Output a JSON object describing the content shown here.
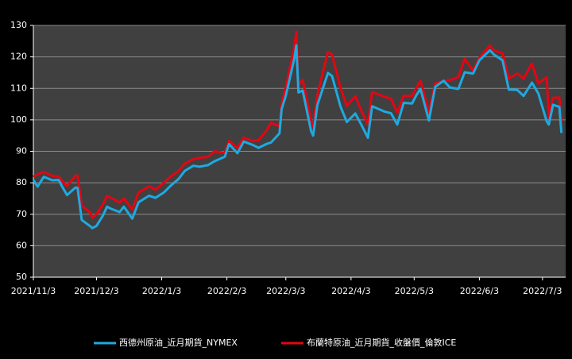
{
  "chart_data": {
    "type": "line",
    "x": [
      "2021/11/3",
      "2021/11/5",
      "2021/11/8",
      "2021/11/12",
      "2021/11/15",
      "2021/11/17",
      "2021/11/19",
      "2021/11/23",
      "2021/11/24",
      "2021/11/26",
      "2021/11/30",
      "2021/12/1",
      "2021/12/3",
      "2021/12/6",
      "2021/12/8",
      "2021/12/10",
      "2021/12/14",
      "2021/12/16",
      "2021/12/20",
      "2021/12/23",
      "2021/12/28",
      "2021/12/31",
      "2022/1/4",
      "2022/1/7",
      "2022/1/11",
      "2022/1/14",
      "2022/1/18",
      "2022/1/21",
      "2022/1/25",
      "2022/1/28",
      "2022/2/2",
      "2022/2/4",
      "2022/2/8",
      "2022/2/11",
      "2022/2/15",
      "2022/2/18",
      "2022/2/22",
      "2022/2/24",
      "2022/2/28",
      "2022/3/1",
      "2022/3/3",
      "2022/3/7",
      "2022/3/8",
      "2022/3/9",
      "2022/3/11",
      "2022/3/15",
      "2022/3/16",
      "2022/3/18",
      "2022/3/23",
      "2022/3/25",
      "2022/3/29",
      "2022/4/1",
      "2022/4/5",
      "2022/4/8",
      "2022/4/11",
      "2022/4/13",
      "2022/4/19",
      "2022/4/22",
      "2022/4/25",
      "2022/4/28",
      "2022/5/2",
      "2022/5/4",
      "2022/5/6",
      "2022/5/10",
      "2022/5/13",
      "2022/5/17",
      "2022/5/20",
      "2022/5/24",
      "2022/5/27",
      "2022/5/31",
      "2022/6/3",
      "2022/6/8",
      "2022/6/10",
      "2022/6/14",
      "2022/6/17",
      "2022/6/21",
      "2022/6/24",
      "2022/6/28",
      "2022/7/1",
      "2022/7/5",
      "2022/7/6",
      "2022/7/8",
      "2022/7/11",
      "2022/7/12"
    ],
    "series": [
      {
        "name": "西德州原油_近月期貨_NYMEX",
        "color": "#1fa9e1",
        "values": [
          80.9,
          78.8,
          81.9,
          80.8,
          80.9,
          78.4,
          76.1,
          78.5,
          78.4,
          68.2,
          66.2,
          65.6,
          66.3,
          69.5,
          72.4,
          71.7,
          70.7,
          72.4,
          68.6,
          73.8,
          75.9,
          75.2,
          76.9,
          78.9,
          81.2,
          83.8,
          85.4,
          85.1,
          85.6,
          86.8,
          88.3,
          92.3,
          89.4,
          93.1,
          92.1,
          91.1,
          92.4,
          92.8,
          95.7,
          103.4,
          107.7,
          119.4,
          123.7,
          108.7,
          109.3,
          96.4,
          95.0,
          104.7,
          114.9,
          113.9,
          104.2,
          99.3,
          102,
          98.3,
          94.3,
          104.3,
          102.6,
          102.1,
          98.5,
          105.4,
          105.2,
          107.8,
          109.8,
          99.8,
          110.5,
          112.4,
          110.3,
          109.8,
          115.1,
          114.7,
          118.9,
          122.1,
          120.7,
          118.9,
          109.6,
          109.5,
          107.6,
          111.8,
          108.4,
          99.5,
          98.5,
          104.8,
          104.1,
          95.8
        ]
      },
      {
        "name": "布蘭特原油_近月期貨_收盤價_倫敦ICE",
        "color": "#e30613",
        "values": [
          81.9,
          82.7,
          83.4,
          82.2,
          82.0,
          80.3,
          78.9,
          82.3,
          82.3,
          72.7,
          70.6,
          68.9,
          69.9,
          73.1,
          75.8,
          75.2,
          73.7,
          75.0,
          71.5,
          76.9,
          78.9,
          77.8,
          80.0,
          81.8,
          83.7,
          86.1,
          87.5,
          87.9,
          88.2,
          90.0,
          89.5,
          93.3,
          91.0,
          94.4,
          93.3,
          93.5,
          96.8,
          99.1,
          97.9,
          105.0,
          110.5,
          123.2,
          128.0,
          111.1,
          112.7,
          99.9,
          98.0,
          107.9,
          121.6,
          120.7,
          110.2,
          104.4,
          107.5,
          102.8,
          98.5,
          108.8,
          107.3,
          106.7,
          102.3,
          107.6,
          107.6,
          110.1,
          112.4,
          102.5,
          111.6,
          112.3,
          112.6,
          113.6,
          119.4,
          115.6,
          119.7,
          123.6,
          122.0,
          121.2,
          113.1,
          114.7,
          113.1,
          117.9,
          111.6,
          113.5,
          100.7,
          107.0,
          107.1,
          99.5
        ]
      }
    ],
    "xlim": [
      "2021/11/3",
      "2022/7/14"
    ],
    "xticks": [
      "2021/11/3",
      "2021/12/3",
      "2022/1/3",
      "2022/2/3",
      "2022/3/3",
      "2022/4/3",
      "2022/5/3",
      "2022/6/3",
      "2022/7/3"
    ],
    "ylim": [
      50,
      130
    ],
    "yticks": [
      50,
      60,
      70,
      80,
      90,
      100,
      110,
      120,
      130
    ],
    "grid": true
  }
}
